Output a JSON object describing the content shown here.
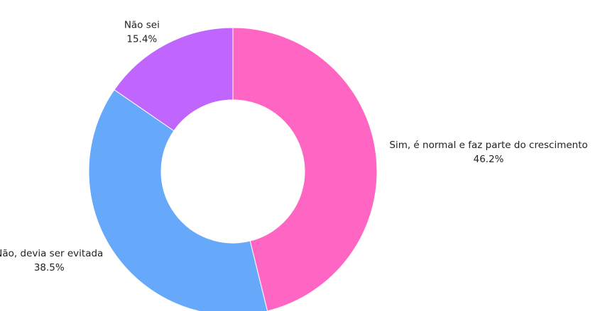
{
  "chart_data": {
    "type": "pie",
    "categories": [
      "Sim, é normal e faz parte do crescimento",
      "Não, devia ser evitada",
      "Não sei"
    ],
    "values": [
      46.2,
      38.5,
      15.4
    ],
    "value_labels": [
      "46.2%",
      "38.5%",
      "15.4%"
    ],
    "colors": [
      "#ff66c4",
      "#66a8fa",
      "#c066ff"
    ]
  }
}
